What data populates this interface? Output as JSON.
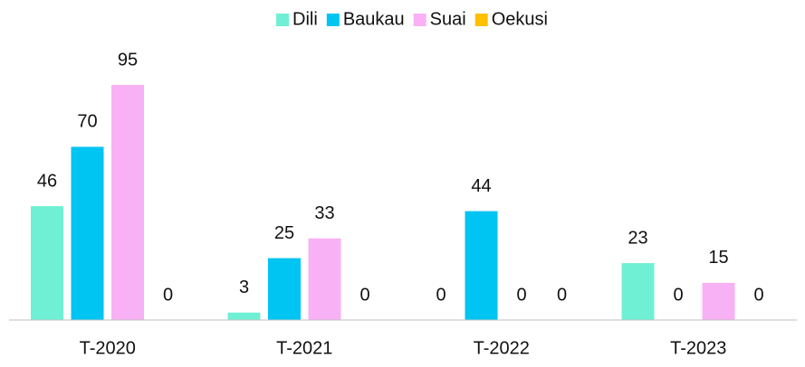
{
  "chart_data": {
    "type": "bar",
    "categories": [
      "T-2020",
      "T-2021",
      "T-2022",
      "T-2023"
    ],
    "series": [
      {
        "name": "Dili",
        "color": "#6ff0d4",
        "values": [
          46,
          3,
          0,
          23
        ]
      },
      {
        "name": "Baukau",
        "color": "#00c4f2",
        "values": [
          70,
          25,
          44,
          0
        ]
      },
      {
        "name": "Suai",
        "color": "#f9b1f5",
        "values": [
          95,
          33,
          0,
          15
        ]
      },
      {
        "name": "Oekusi",
        "color": "#ffc000",
        "values": [
          0,
          0,
          0,
          0
        ]
      }
    ],
    "legend": "top"
  }
}
